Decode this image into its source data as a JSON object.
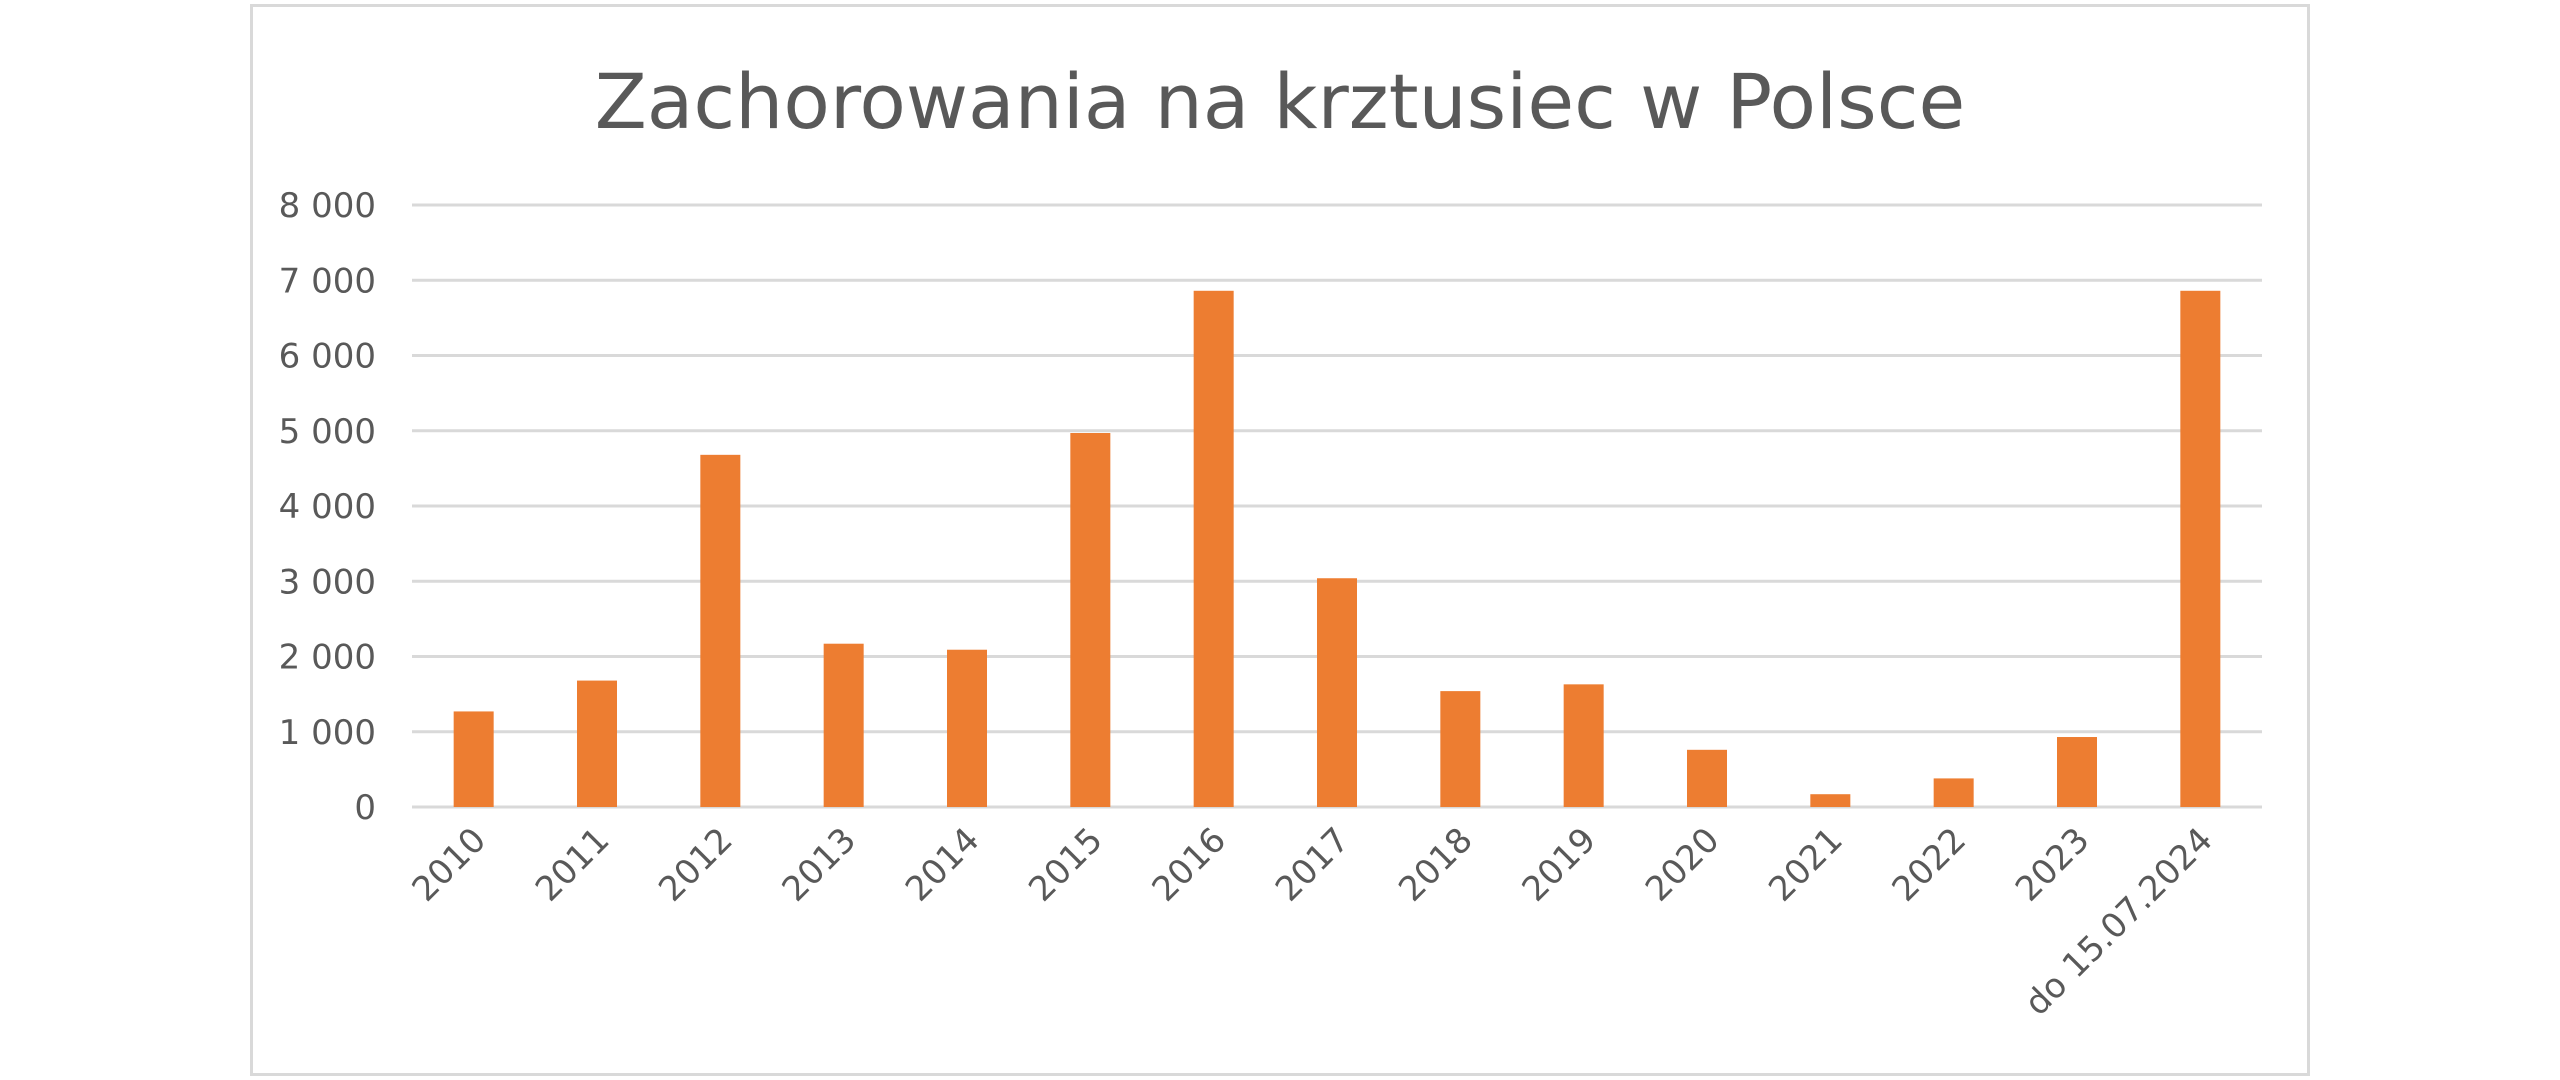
{
  "chart_data": {
    "type": "bar",
    "title": "Zachorowania na krztusiec w Polsce",
    "xlabel": "",
    "ylabel": "",
    "categories": [
      "2010",
      "2011",
      "2012",
      "2013",
      "2014",
      "2015",
      "2016",
      "2017",
      "2018",
      "2019",
      "2020",
      "2021",
      "2022",
      "2023",
      "do 15.07.2024"
    ],
    "values": [
      1270,
      1680,
      4680,
      2170,
      2090,
      4970,
      6860,
      3040,
      1540,
      1630,
      760,
      170,
      380,
      930,
      6860
    ],
    "ylim": [
      0,
      8000
    ],
    "y_ticks": [
      {
        "value": 0,
        "label": "0"
      },
      {
        "value": 1000,
        "label": "1 000"
      },
      {
        "value": 2000,
        "label": "2 000"
      },
      {
        "value": 3000,
        "label": "3 000"
      },
      {
        "value": 4000,
        "label": "4 000"
      },
      {
        "value": 5000,
        "label": "5 000"
      },
      {
        "value": 6000,
        "label": "6 000"
      },
      {
        "value": 7000,
        "label": "7 000"
      },
      {
        "value": 8000,
        "label": "8 000"
      }
    ],
    "bar_color": "#ED7D31",
    "grid": true,
    "legend": "none"
  }
}
